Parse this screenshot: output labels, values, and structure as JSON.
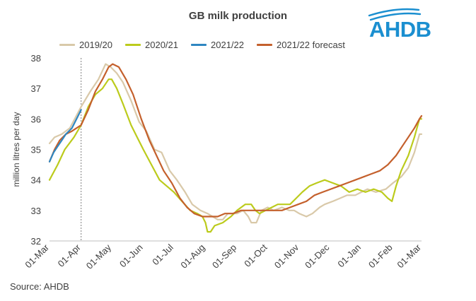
{
  "header": {
    "title": "GB milk production",
    "logo_text": "AHDB"
  },
  "footer": {
    "source": "Source: AHDB"
  },
  "colors": {
    "2019/20": "#d9c9a9",
    "2020/21": "#bccb1c",
    "2021/22": "#2e86c1",
    "2021/22 forecast": "#c4602c",
    "logo": "#1b8fd0",
    "axis": "#bfbfbf",
    "marker": "#7f7f7f"
  },
  "chart_data": {
    "type": "line",
    "title": "GB milk production",
    "xlabel": "",
    "ylabel": "million litres per day",
    "ylim": [
      32,
      38
    ],
    "yticks": [
      32,
      33,
      34,
      35,
      36,
      37,
      38
    ],
    "x_unit": "days since 01-Mar",
    "xlim": [
      0,
      365
    ],
    "categories": [
      "01-Mar",
      "01-Apr",
      "01-May",
      "01-Jun",
      "01-Jul",
      "01-Aug",
      "01-Sep",
      "01-Oct",
      "01-Nov",
      "01-Dec",
      "01-Jan",
      "01-Feb",
      "01-Mar"
    ],
    "tick_days": [
      0,
      31,
      61,
      92,
      122,
      153,
      184,
      214,
      245,
      275,
      306,
      337,
      365
    ],
    "vertical_marker": {
      "label": "01-Apr",
      "day": 31,
      "style": "dotted"
    },
    "legend": [
      "2019/20",
      "2020/21",
      "2021/22",
      "2021/22 forecast"
    ],
    "series": [
      {
        "name": "2019/20",
        "points": [
          [
            0,
            35.2
          ],
          [
            5,
            35.4
          ],
          [
            12,
            35.5
          ],
          [
            20,
            35.7
          ],
          [
            31,
            36.4
          ],
          [
            40,
            36.9
          ],
          [
            48,
            37.3
          ],
          [
            55,
            37.8
          ],
          [
            60,
            37.7
          ],
          [
            66,
            37.5
          ],
          [
            72,
            37.2
          ],
          [
            80,
            36.6
          ],
          [
            88,
            35.9
          ],
          [
            95,
            35.6
          ],
          [
            103,
            35.0
          ],
          [
            110,
            34.9
          ],
          [
            118,
            34.3
          ],
          [
            125,
            34.0
          ],
          [
            133,
            33.6
          ],
          [
            140,
            33.2
          ],
          [
            148,
            33.0
          ],
          [
            155,
            32.9
          ],
          [
            160,
            32.8
          ],
          [
            165,
            32.7
          ],
          [
            170,
            32.7
          ],
          [
            175,
            32.9
          ],
          [
            184,
            32.9
          ],
          [
            190,
            33.0
          ],
          [
            195,
            32.8
          ],
          [
            198,
            32.6
          ],
          [
            203,
            32.6
          ],
          [
            208,
            33.0
          ],
          [
            214,
            33.1
          ],
          [
            220,
            33.0
          ],
          [
            228,
            33.1
          ],
          [
            235,
            33.0
          ],
          [
            240,
            33.0
          ],
          [
            245,
            32.9
          ],
          [
            252,
            32.8
          ],
          [
            258,
            32.9
          ],
          [
            265,
            33.1
          ],
          [
            270,
            33.2
          ],
          [
            278,
            33.3
          ],
          [
            285,
            33.4
          ],
          [
            292,
            33.5
          ],
          [
            300,
            33.5
          ],
          [
            306,
            33.6
          ],
          [
            312,
            33.7
          ],
          [
            320,
            33.6
          ],
          [
            330,
            33.7
          ],
          [
            337,
            33.9
          ],
          [
            345,
            34.1
          ],
          [
            352,
            34.4
          ],
          [
            358,
            34.9
          ],
          [
            363,
            35.5
          ],
          [
            365,
            35.5
          ]
        ]
      },
      {
        "name": "2020/21",
        "points": [
          [
            0,
            34.0
          ],
          [
            8,
            34.5
          ],
          [
            15,
            35.0
          ],
          [
            24,
            35.4
          ],
          [
            31,
            35.8
          ],
          [
            38,
            36.4
          ],
          [
            45,
            36.8
          ],
          [
            52,
            37.0
          ],
          [
            58,
            37.3
          ],
          [
            61,
            37.3
          ],
          [
            66,
            37.0
          ],
          [
            72,
            36.5
          ],
          [
            80,
            35.8
          ],
          [
            86,
            35.4
          ],
          [
            92,
            35.0
          ],
          [
            100,
            34.5
          ],
          [
            108,
            34.0
          ],
          [
            115,
            33.8
          ],
          [
            122,
            33.6
          ],
          [
            130,
            33.3
          ],
          [
            138,
            33.0
          ],
          [
            145,
            32.9
          ],
          [
            150,
            32.8
          ],
          [
            153,
            32.6
          ],
          [
            155,
            32.3
          ],
          [
            158,
            32.3
          ],
          [
            162,
            32.5
          ],
          [
            170,
            32.6
          ],
          [
            178,
            32.8
          ],
          [
            184,
            33.0
          ],
          [
            192,
            33.2
          ],
          [
            198,
            33.2
          ],
          [
            202,
            33.0
          ],
          [
            206,
            32.9
          ],
          [
            212,
            33.0
          ],
          [
            218,
            33.1
          ],
          [
            224,
            33.2
          ],
          [
            230,
            33.2
          ],
          [
            236,
            33.2
          ],
          [
            242,
            33.4
          ],
          [
            248,
            33.6
          ],
          [
            255,
            33.8
          ],
          [
            262,
            33.9
          ],
          [
            270,
            34.0
          ],
          [
            278,
            33.9
          ],
          [
            286,
            33.8
          ],
          [
            294,
            33.6
          ],
          [
            302,
            33.7
          ],
          [
            310,
            33.6
          ],
          [
            318,
            33.7
          ],
          [
            326,
            33.6
          ],
          [
            332,
            33.4
          ],
          [
            336,
            33.3
          ],
          [
            340,
            33.8
          ],
          [
            345,
            34.3
          ],
          [
            352,
            34.8
          ],
          [
            358,
            35.4
          ],
          [
            363,
            36.0
          ],
          [
            365,
            36.0
          ]
        ]
      },
      {
        "name": "2021/22",
        "points": [
          [
            0,
            34.6
          ],
          [
            4,
            34.9
          ],
          [
            8,
            35.1
          ],
          [
            12,
            35.3
          ],
          [
            16,
            35.5
          ],
          [
            19,
            35.6
          ],
          [
            22,
            35.7
          ],
          [
            25,
            35.9
          ],
          [
            28,
            36.1
          ],
          [
            31,
            36.3
          ]
        ]
      },
      {
        "name": "2021/22 forecast",
        "points": [
          [
            0,
            34.6
          ],
          [
            5,
            35.0
          ],
          [
            10,
            35.3
          ],
          [
            16,
            35.5
          ],
          [
            22,
            35.6
          ],
          [
            31,
            35.8
          ],
          [
            38,
            36.3
          ],
          [
            45,
            36.9
          ],
          [
            52,
            37.3
          ],
          [
            58,
            37.7
          ],
          [
            62,
            37.8
          ],
          [
            68,
            37.7
          ],
          [
            75,
            37.3
          ],
          [
            82,
            36.8
          ],
          [
            90,
            36.0
          ],
          [
            98,
            35.3
          ],
          [
            105,
            34.8
          ],
          [
            112,
            34.3
          ],
          [
            120,
            33.9
          ],
          [
            128,
            33.4
          ],
          [
            135,
            33.1
          ],
          [
            142,
            32.9
          ],
          [
            150,
            32.8
          ],
          [
            158,
            32.8
          ],
          [
            165,
            32.8
          ],
          [
            172,
            32.9
          ],
          [
            180,
            32.9
          ],
          [
            188,
            33.0
          ],
          [
            196,
            33.0
          ],
          [
            204,
            33.0
          ],
          [
            212,
            33.0
          ],
          [
            220,
            33.0
          ],
          [
            228,
            33.0
          ],
          [
            236,
            33.1
          ],
          [
            244,
            33.2
          ],
          [
            252,
            33.3
          ],
          [
            260,
            33.5
          ],
          [
            268,
            33.6
          ],
          [
            276,
            33.7
          ],
          [
            284,
            33.8
          ],
          [
            292,
            33.9
          ],
          [
            300,
            34.0
          ],
          [
            308,
            34.1
          ],
          [
            316,
            34.2
          ],
          [
            324,
            34.3
          ],
          [
            332,
            34.5
          ],
          [
            340,
            34.8
          ],
          [
            346,
            35.1
          ],
          [
            352,
            35.4
          ],
          [
            358,
            35.7
          ],
          [
            363,
            36.0
          ],
          [
            365,
            36.1
          ]
        ]
      }
    ]
  }
}
